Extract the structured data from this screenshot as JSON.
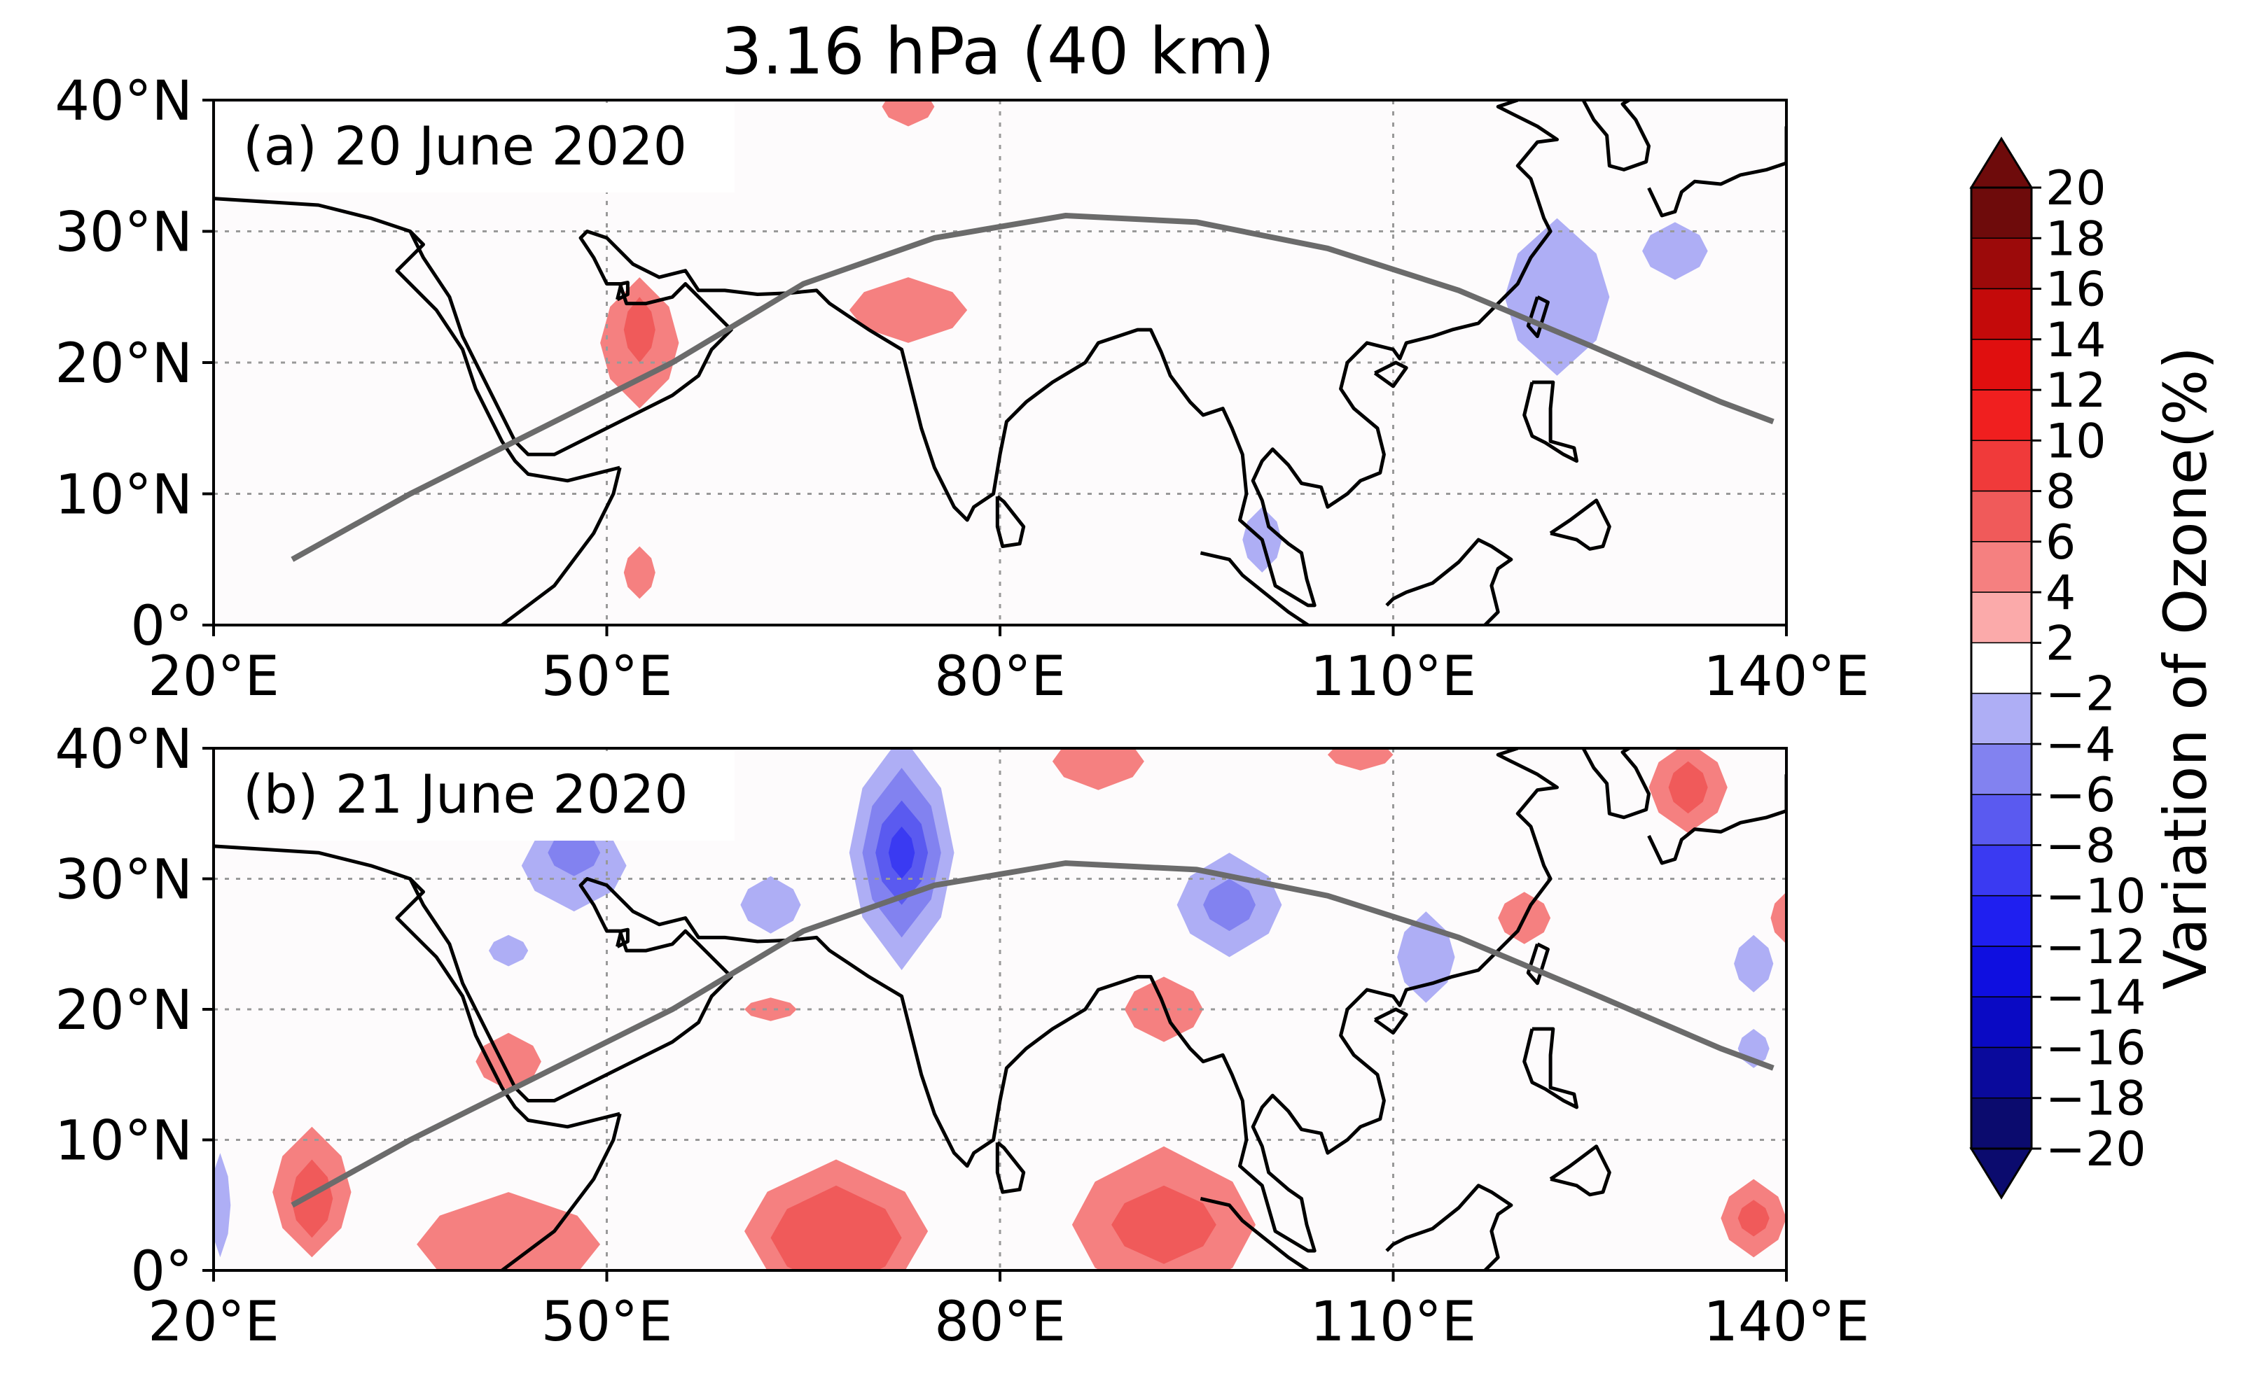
{
  "chart_data": {
    "type": "contour-map",
    "title": "3.16 hPa (40 km)",
    "colorbar": {
      "label": "Variation of Ozone(%)",
      "levels": [
        -20,
        -18,
        -16,
        -14,
        -12,
        -10,
        -8,
        -6,
        -4,
        -2,
        2,
        4,
        6,
        8,
        10,
        12,
        14,
        16,
        18,
        20
      ],
      "tick_labels": [
        "20",
        "18",
        "16",
        "14",
        "12",
        "10",
        "8",
        "6",
        "4",
        "2",
        "−2",
        "−4",
        "−6",
        "−8",
        "−10",
        "−12",
        "−14",
        "−16",
        "−18",
        "−20"
      ],
      "colors": [
        "#0b0b6e",
        "#0a0a9c",
        "#0a0ac4",
        "#0f0fe0",
        "#1f1ff0",
        "#3a3af2",
        "#5a5af0",
        "#8282f0",
        "#aeaef5",
        "#ffffff",
        "#fbaaaa",
        "#f58080",
        "#f05a5a",
        "#f03a3a",
        "#f01f1f",
        "#e00f0f",
        "#c40a0a",
        "#9c0a0a",
        "#6e0b0b"
      ]
    },
    "x_ticks": [
      20,
      50,
      80,
      110,
      140
    ],
    "x_tick_labels": [
      "20°E",
      "50°E",
      "80°E",
      "110°E",
      "140°E"
    ],
    "y_ticks": [
      0,
      10,
      20,
      30,
      40
    ],
    "y_tick_labels": [
      "0°",
      "10°N",
      "20°N",
      "30°N",
      "40°N"
    ],
    "xlim": [
      20,
      140
    ],
    "ylim": [
      0,
      40
    ],
    "grid": true,
    "track": [
      [
        26,
        5
      ],
      [
        35,
        10
      ],
      [
        45,
        15
      ],
      [
        55,
        20
      ],
      [
        65,
        26
      ],
      [
        75,
        29.5
      ],
      [
        85,
        31.2
      ],
      [
        95,
        30.7
      ],
      [
        105,
        28.7
      ],
      [
        115,
        25.5
      ],
      [
        125,
        21.3
      ],
      [
        135,
        17
      ],
      [
        139,
        15.5
      ]
    ],
    "panels": [
      {
        "label": "(a) 20 June 2020",
        "blobs": [
          {
            "lon": 52.5,
            "lat": 21.5,
            "rx": 3,
            "ry": 5,
            "value": 4
          },
          {
            "lon": 52.5,
            "lat": 22.5,
            "rx": 1.2,
            "ry": 2.5,
            "value": 6
          },
          {
            "lon": 73,
            "lat": 24,
            "rx": 4.5,
            "ry": 2.5,
            "value": 4
          },
          {
            "lon": 122.5,
            "lat": 25,
            "rx": 4,
            "ry": 6,
            "value": -4
          },
          {
            "lon": 131.5,
            "lat": 28.5,
            "rx": 2.5,
            "ry": 2.2,
            "value": -4
          },
          {
            "lon": 100,
            "lat": 6.5,
            "rx": 1.5,
            "ry": 2.5,
            "value": -4
          },
          {
            "lon": 52.5,
            "lat": 4,
            "rx": 1.2,
            "ry": 2,
            "value": 4
          },
          {
            "lon": 73,
            "lat": 39.5,
            "rx": 2,
            "ry": 1.5,
            "value": 4
          }
        ]
      },
      {
        "label": "(b) 21 June 2020",
        "blobs": [
          {
            "lon": 72.5,
            "lat": 32,
            "rx": 4,
            "ry": 9,
            "value": -4
          },
          {
            "lon": 72.5,
            "lat": 32,
            "rx": 3,
            "ry": 6.5,
            "value": -6
          },
          {
            "lon": 72.5,
            "lat": 32,
            "rx": 2,
            "ry": 4,
            "value": -8
          },
          {
            "lon": 72.5,
            "lat": 32,
            "rx": 1,
            "ry": 2,
            "value": -10
          },
          {
            "lon": 47.5,
            "lat": 31,
            "rx": 4,
            "ry": 3.5,
            "value": -4
          },
          {
            "lon": 47.5,
            "lat": 32,
            "rx": 2,
            "ry": 1.8,
            "value": -6
          },
          {
            "lon": 62.5,
            "lat": 28,
            "rx": 2.3,
            "ry": 2.2,
            "value": -4
          },
          {
            "lon": 97.5,
            "lat": 28,
            "rx": 4,
            "ry": 4,
            "value": -4
          },
          {
            "lon": 97.5,
            "lat": 28,
            "rx": 2,
            "ry": 2,
            "value": -6
          },
          {
            "lon": 112.5,
            "lat": 24,
            "rx": 2.2,
            "ry": 3.5,
            "value": -4
          },
          {
            "lon": 137.5,
            "lat": 23.5,
            "rx": 1.5,
            "ry": 2.2,
            "value": -4
          },
          {
            "lon": 137.5,
            "lat": 17,
            "rx": 1.2,
            "ry": 1.5,
            "value": -4
          },
          {
            "lon": 42.5,
            "lat": 24.5,
            "rx": 1.5,
            "ry": 1.2,
            "value": -4
          },
          {
            "lon": 20.5,
            "lat": 5,
            "rx": 0.8,
            "ry": 4,
            "value": -4
          },
          {
            "lon": 87.5,
            "lat": 39,
            "rx": 3.5,
            "ry": 2.2,
            "value": 4
          },
          {
            "lon": 132.5,
            "lat": 37,
            "rx": 3,
            "ry": 3.5,
            "value": 4
          },
          {
            "lon": 132.5,
            "lat": 37,
            "rx": 1.5,
            "ry": 2,
            "value": 6
          },
          {
            "lon": 107.5,
            "lat": 39.5,
            "rx": 2.5,
            "ry": 1.2,
            "value": 4
          },
          {
            "lon": 120,
            "lat": 27,
            "rx": 2,
            "ry": 2,
            "value": 4
          },
          {
            "lon": 140,
            "lat": 27,
            "rx": 1.2,
            "ry": 2,
            "value": 4
          },
          {
            "lon": 92.5,
            "lat": 20,
            "rx": 3,
            "ry": 2.5,
            "value": 4
          },
          {
            "lon": 42.5,
            "lat": 16,
            "rx": 2.5,
            "ry": 2.2,
            "value": 4
          },
          {
            "lon": 62.5,
            "lat": 20,
            "rx": 2,
            "ry": 0.9,
            "value": 4
          },
          {
            "lon": 27.5,
            "lat": 6,
            "rx": 3,
            "ry": 5,
            "value": 4
          },
          {
            "lon": 27.5,
            "lat": 5.5,
            "rx": 1.6,
            "ry": 3,
            "value": 6
          },
          {
            "lon": 42.5,
            "lat": 2,
            "rx": 7,
            "ry": 4,
            "value": 4
          },
          {
            "lon": 67.5,
            "lat": 3,
            "rx": 7,
            "ry": 5.5,
            "value": 4
          },
          {
            "lon": 67.5,
            "lat": 2.5,
            "rx": 5,
            "ry": 4,
            "value": 6
          },
          {
            "lon": 92.5,
            "lat": 3.5,
            "rx": 7,
            "ry": 6,
            "value": 4
          },
          {
            "lon": 92.5,
            "lat": 3.5,
            "rx": 4,
            "ry": 3,
            "value": 6
          },
          {
            "lon": 137.5,
            "lat": 4,
            "rx": 2.5,
            "ry": 3,
            "value": 4
          },
          {
            "lon": 137.5,
            "lat": 4,
            "rx": 1.2,
            "ry": 1.4,
            "value": 6
          }
        ]
      }
    ]
  }
}
